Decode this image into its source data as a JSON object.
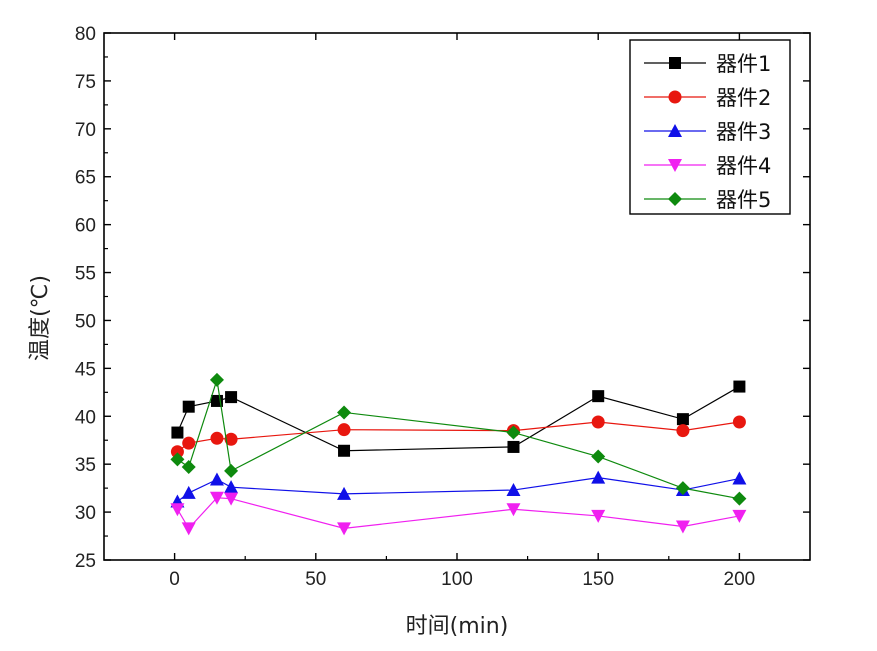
{
  "chart_data": {
    "type": "line",
    "xlabel": "时间(min)",
    "ylabel": "温度(℃)",
    "xlim": [
      -25,
      225
    ],
    "ylim": [
      25,
      80
    ],
    "xticks": [
      0,
      50,
      100,
      150,
      200
    ],
    "yticks": [
      25,
      30,
      35,
      40,
      45,
      50,
      55,
      60,
      65,
      70,
      75,
      80
    ],
    "x": [
      1,
      5,
      15,
      20,
      60,
      120,
      150,
      180,
      200
    ],
    "legend_position": "top-right",
    "grid": false,
    "series": [
      {
        "name": "器件1",
        "color": "#000000",
        "marker": "square",
        "values": [
          38.3,
          41.0,
          41.6,
          42.0,
          36.4,
          36.8,
          42.1,
          39.7,
          43.1
        ]
      },
      {
        "name": "器件2",
        "color": "#e8170f",
        "marker": "circle",
        "values": [
          36.3,
          37.2,
          37.7,
          37.6,
          38.6,
          38.5,
          39.4,
          38.5,
          39.4
        ]
      },
      {
        "name": "器件3",
        "color": "#1010e8",
        "marker": "triangle",
        "values": [
          31.1,
          32.0,
          33.4,
          32.6,
          31.9,
          32.3,
          33.6,
          32.3,
          33.5
        ]
      },
      {
        "name": "器件4",
        "color": "#f020f0",
        "marker": "triangle-down",
        "values": [
          30.3,
          28.3,
          31.5,
          31.4,
          28.3,
          30.3,
          29.6,
          28.5,
          29.6
        ]
      },
      {
        "name": "器件5",
        "color": "#0e8a0e",
        "marker": "diamond",
        "values": [
          35.5,
          34.7,
          43.8,
          34.3,
          40.4,
          38.3,
          35.8,
          32.5,
          31.4
        ]
      }
    ]
  }
}
